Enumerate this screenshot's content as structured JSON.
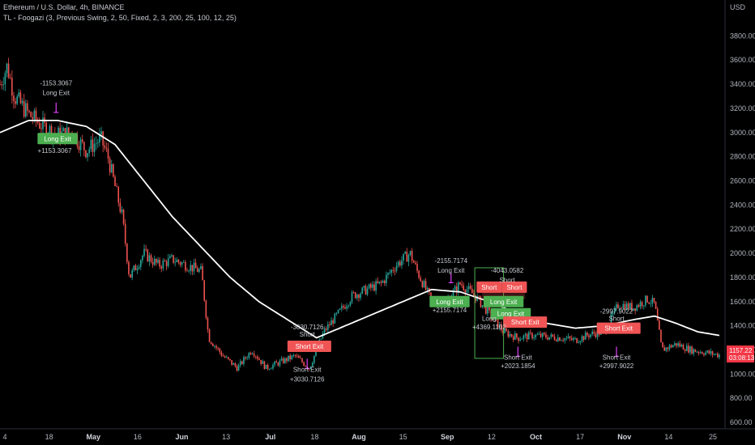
{
  "header": {
    "symbol": "Ethereum / U.S. Dollar, 4h, BINANCE",
    "indicator": "TL - Foogazi (3, Previous Swing, 2, 50, Fixed, 2, 3, 200, 25, 100, 12, 25)"
  },
  "price_axis": {
    "currency": "USD",
    "last_price": "1157.22",
    "countdown": "03:08:13"
  },
  "colors": {
    "background": "#000000",
    "up": "#26a69a",
    "down": "#ef5350",
    "ma": "#ffffff",
    "long_tag": "#4caf50",
    "short_tag": "#f05454",
    "marker": "#e040fb"
  },
  "chart_data": {
    "type": "candlestick",
    "title": "Ethereum / U.S. Dollar, 4h, BINANCE",
    "ylim": [
      560,
      3950
    ],
    "yticks": [
      600,
      800,
      1000,
      1200,
      1400,
      1600,
      1800,
      2000,
      2200,
      2400,
      2600,
      2800,
      3000,
      3200,
      3400,
      3600,
      3800
    ],
    "ytick_labels": [
      "600.00",
      "800.00",
      "1000.00",
      "1200.00",
      "1400.00",
      "1600.00",
      "1800.00",
      "2000.00",
      "2200.00",
      "2400.00",
      "2600.00",
      "2800.00",
      "3000.00",
      "3200.00",
      "3400.00",
      "3600.00",
      "3800.00"
    ],
    "x_labels": [
      {
        "label": "4",
        "bold": false
      },
      {
        "label": "18",
        "bold": false
      },
      {
        "label": "May",
        "bold": true
      },
      {
        "label": "16",
        "bold": false
      },
      {
        "label": "Jun",
        "bold": true
      },
      {
        "label": "13",
        "bold": false
      },
      {
        "label": "Jul",
        "bold": true
      },
      {
        "label": "18",
        "bold": false
      },
      {
        "label": "Aug",
        "bold": true
      },
      {
        "label": "15",
        "bold": false
      },
      {
        "label": "Sep",
        "bold": true
      },
      {
        "label": "12",
        "bold": false
      },
      {
        "label": "Oct",
        "bold": true
      },
      {
        "label": "17",
        "bold": false
      },
      {
        "label": "Nov",
        "bold": true
      },
      {
        "label": "14",
        "bold": false
      },
      {
        "label": "25",
        "bold": false
      }
    ],
    "price_path": [
      [
        0,
        3400
      ],
      [
        0.01,
        3550
      ],
      [
        0.02,
        3300
      ],
      [
        0.04,
        3150
      ],
      [
        0.06,
        3050
      ],
      [
        0.08,
        2980
      ],
      [
        0.1,
        3000
      ],
      [
        0.12,
        2850
      ],
      [
        0.14,
        2950
      ],
      [
        0.15,
        2800
      ],
      [
        0.17,
        2300
      ],
      [
        0.18,
        1800
      ],
      [
        0.2,
        2000
      ],
      [
        0.22,
        1900
      ],
      [
        0.24,
        1950
      ],
      [
        0.26,
        1900
      ],
      [
        0.28,
        1850
      ],
      [
        0.29,
        1300
      ],
      [
        0.31,
        1150
      ],
      [
        0.33,
        1050
      ],
      [
        0.35,
        1200
      ],
      [
        0.37,
        1050
      ],
      [
        0.39,
        1100
      ],
      [
        0.41,
        1150
      ],
      [
        0.43,
        1050
      ],
      [
        0.45,
        1350
      ],
      [
        0.47,
        1500
      ],
      [
        0.49,
        1650
      ],
      [
        0.51,
        1700
      ],
      [
        0.53,
        1750
      ],
      [
        0.55,
        1900
      ],
      [
        0.57,
        2000
      ],
      [
        0.58,
        1850
      ],
      [
        0.6,
        1600
      ],
      [
        0.62,
        1600
      ],
      [
        0.64,
        1750
      ],
      [
        0.66,
        1650
      ],
      [
        0.68,
        1500
      ],
      [
        0.7,
        1350
      ],
      [
        0.72,
        1300
      ],
      [
        0.74,
        1320
      ],
      [
        0.76,
        1310
      ],
      [
        0.78,
        1300
      ],
      [
        0.8,
        1280
      ],
      [
        0.82,
        1330
      ],
      [
        0.84,
        1350
      ],
      [
        0.86,
        1580
      ],
      [
        0.88,
        1550
      ],
      [
        0.9,
        1620
      ],
      [
        0.91,
        1580
      ],
      [
        0.92,
        1200
      ],
      [
        0.94,
        1250
      ],
      [
        0.96,
        1200
      ],
      [
        0.98,
        1180
      ],
      [
        1,
        1157
      ]
    ],
    "ma_path": [
      [
        0,
        3000
      ],
      [
        0.04,
        3100
      ],
      [
        0.08,
        3100
      ],
      [
        0.12,
        3050
      ],
      [
        0.16,
        2900
      ],
      [
        0.2,
        2600
      ],
      [
        0.24,
        2300
      ],
      [
        0.28,
        2050
      ],
      [
        0.32,
        1800
      ],
      [
        0.36,
        1600
      ],
      [
        0.4,
        1450
      ],
      [
        0.44,
        1300
      ],
      [
        0.48,
        1400
      ],
      [
        0.52,
        1500
      ],
      [
        0.56,
        1600
      ],
      [
        0.6,
        1700
      ],
      [
        0.64,
        1680
      ],
      [
        0.68,
        1600
      ],
      [
        0.72,
        1500
      ],
      [
        0.76,
        1420
      ],
      [
        0.8,
        1380
      ],
      [
        0.84,
        1400
      ],
      [
        0.88,
        1450
      ],
      [
        0.91,
        1480
      ],
      [
        0.94,
        1420
      ],
      [
        0.97,
        1350
      ],
      [
        1,
        1320
      ]
    ],
    "annotations": [
      {
        "text": "-1153.3067",
        "xf": 0.078,
        "p": 3390
      },
      {
        "text": "Long Exit",
        "xf": 0.078,
        "p": 3310
      },
      {
        "text": "+1153.3067",
        "xf": 0.076,
        "p": 2830
      },
      {
        "text": "-3030.7126",
        "xf": 0.427,
        "p": 1370
      },
      {
        "text": "Short",
        "xf": 0.427,
        "p": 1310
      },
      {
        "text": "Short Exit",
        "xf": 0.427,
        "p": 1020
      },
      {
        "text": "+3030.7126",
        "xf": 0.427,
        "p": 940
      },
      {
        "text": "-2155.7174",
        "xf": 0.627,
        "p": 1920
      },
      {
        "text": "Long Exit",
        "xf": 0.627,
        "p": 1840
      },
      {
        "text": "+2155.7174",
        "xf": 0.625,
        "p": 1510
      },
      {
        "text": "-4043.0582",
        "xf": 0.705,
        "p": 1840
      },
      {
        "text": "Short",
        "xf": 0.705,
        "p": 1760
      },
      {
        "text": "Long",
        "xf": 0.68,
        "p": 1440
      },
      {
        "text": "+4369.1102",
        "xf": 0.68,
        "p": 1370
      },
      {
        "text": "Short Exit",
        "xf": 0.72,
        "p": 1120
      },
      {
        "text": "+2023.1854",
        "xf": 0.72,
        "p": 1050
      },
      {
        "text": "-2997.9022",
        "xf": 0.857,
        "p": 1500
      },
      {
        "text": "Short",
        "xf": 0.857,
        "p": 1440
      },
      {
        "text": "Short Exit",
        "xf": 0.857,
        "p": 1120
      },
      {
        "text": "+2997.9022",
        "xf": 0.857,
        "p": 1050
      }
    ],
    "tags": [
      {
        "text": "Long Exit",
        "side": "long",
        "xf": 0.08,
        "p": 2950
      },
      {
        "text": "Short Exit",
        "side": "short",
        "xf": 0.43,
        "p": 1230
      },
      {
        "text": "Long Exit",
        "side": "long",
        "xf": 0.625,
        "p": 1600
      },
      {
        "text": "Short",
        "side": "short",
        "xf": 0.68,
        "p": 1720
      },
      {
        "text": "Short",
        "side": "short",
        "xf": 0.715,
        "p": 1720
      },
      {
        "text": "Long Exit",
        "side": "long",
        "xf": 0.7,
        "p": 1600
      },
      {
        "text": "Long Exit",
        "side": "long",
        "xf": 0.71,
        "p": 1500
      },
      {
        "text": "Short Exit",
        "side": "short",
        "xf": 0.73,
        "p": 1430
      },
      {
        "text": "Short Exit",
        "side": "short",
        "xf": 0.86,
        "p": 1380
      }
    ],
    "markers": [
      {
        "xf": 0.078,
        "p": 3200
      },
      {
        "xf": 0.427,
        "p": 1080
      },
      {
        "xf": 0.627,
        "p": 1790
      },
      {
        "xf": 0.72,
        "p": 1180
      },
      {
        "xf": 0.857,
        "p": 1180
      }
    ]
  }
}
